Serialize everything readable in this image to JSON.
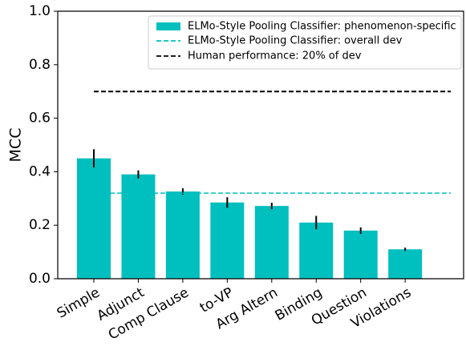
{
  "chart_data": {
    "type": "bar",
    "y_label": "MCC",
    "categories": [
      "Simple",
      "Adjunct",
      "Comp Clause",
      "to-VP",
      "Arg Altern",
      "Binding",
      "Question",
      "Violations"
    ],
    "series": [
      {
        "name": "ELMo-Style Pooling Classifier: phenomenon-specific",
        "color": "#00bfbf",
        "values": [
          0.45,
          0.39,
          0.326,
          0.285,
          0.272,
          0.21,
          0.18,
          0.11
        ],
        "errors": [
          0.034,
          0.015,
          0.012,
          0.02,
          0.012,
          0.025,
          0.012,
          0.006
        ]
      }
    ],
    "reference_lines": [
      {
        "name": "ELMo-Style Pooling Classifier: overall dev",
        "color": "#00bfbf",
        "value": 0.32
      },
      {
        "name": "Human performance: 20% of dev",
        "color": "#000000",
        "value": 0.7
      }
    ],
    "ylim": [
      0,
      1
    ],
    "yticks": [
      {
        "value": 0,
        "label": "0.0"
      },
      0.2,
      0.4,
      0.6,
      0.8,
      {
        "value": 1,
        "label": "1.0"
      }
    ],
    "legend": "upper right"
  }
}
